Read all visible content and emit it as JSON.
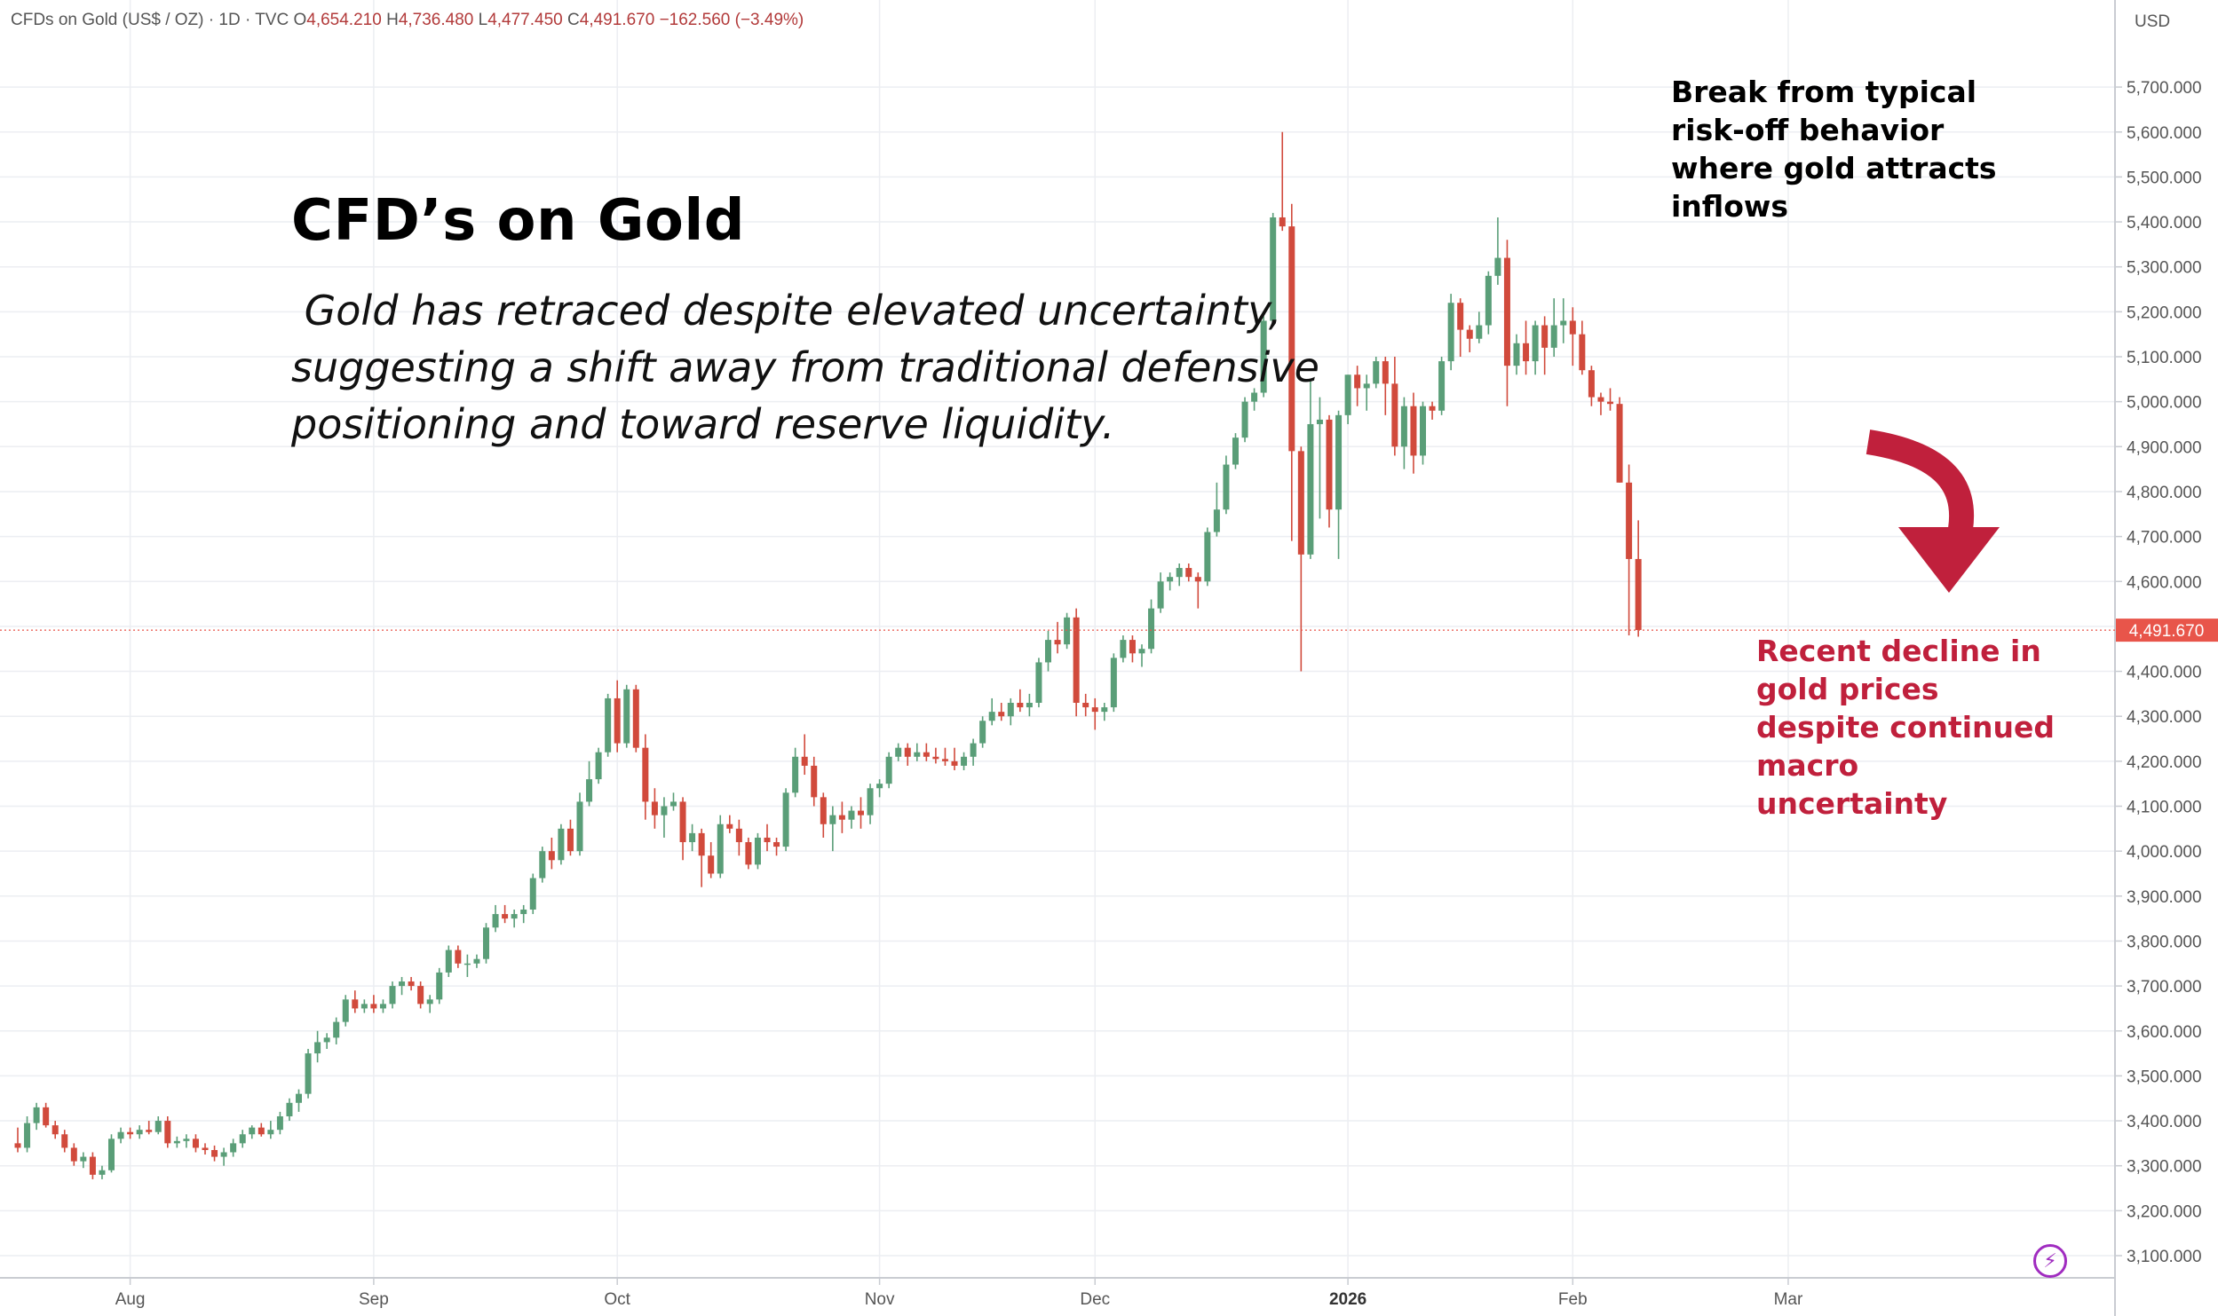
{
  "legend": {
    "symbol": "CFDs on Gold (US$ / OZ) · 1D · TVC",
    "open_label": "O",
    "open": "4,654.210",
    "high_label": "H",
    "high": "4,736.480",
    "low_label": "L",
    "low": "4,477.450",
    "close_label": "C",
    "close": "4,491.670",
    "change": "−162.560 (−3.49%)"
  },
  "headline": {
    "title": "CFD’s on Gold",
    "subtitle": " Gold has retraced despite elevated uncertainty,\nsuggesting a shift away from traditional defensive\npositioning and toward reserve liquidity."
  },
  "annotations": {
    "top": "Break from typical risk-off behavior where gold attracts inflows",
    "bottom": "Recent decline in gold prices despite continued macro uncertainty"
  },
  "colors": {
    "up": "#5a9e78",
    "down": "#d14a3c",
    "arrow": "#c0203c",
    "price_tag": "#e8554a",
    "grid": "#eceef2"
  },
  "icons": {
    "bolt": "lightning-icon"
  },
  "chart_data": {
    "type": "candlestick",
    "title": "CFDs on Gold (US$ / OZ) · 1D · TVC",
    "currency": "USD",
    "ylim": [
      3030,
      5780
    ],
    "yticks": [
      3100,
      3200,
      3300,
      3400,
      3500,
      3600,
      3700,
      3800,
      3900,
      4000,
      4100,
      4200,
      4300,
      4400,
      4500,
      4600,
      4700,
      4800,
      4900,
      5000,
      5100,
      5200,
      5300,
      5400,
      5500,
      5600,
      5700
    ],
    "ytick_labels": [
      "3,100.000",
      "3,200.000",
      "3,300.000",
      "3,400.000",
      "3,500.000",
      "3,600.000",
      "3,700.000",
      "3,800.000",
      "3,900.000",
      "4,000.000",
      "4,100.000",
      "4,200.000",
      "4,300.000",
      "4,400.000",
      "4,500.000",
      "4,600.000",
      "4,700.000",
      "4,800.000",
      "4,900.000",
      "5,000.000",
      "5,100.000",
      "5,200.000",
      "5,300.000",
      "5,400.000",
      "5,500.000",
      "5,600.000",
      "5,700.000"
    ],
    "x_labels": [
      {
        "label": "Aug",
        "index": 12,
        "bold": false
      },
      {
        "label": "Sep",
        "index": 38,
        "bold": false
      },
      {
        "label": "Oct",
        "index": 64,
        "bold": false
      },
      {
        "label": "Nov",
        "index": 92,
        "bold": false
      },
      {
        "label": "Dec",
        "index": 115,
        "bold": false
      },
      {
        "label": "2026",
        "index": 142,
        "bold": true
      },
      {
        "label": "Feb",
        "index": 166,
        "bold": false
      },
      {
        "label": "Mar",
        "index": 189,
        "bold": false
      }
    ],
    "last_price": 4491.67,
    "last_price_label": "4,491.670",
    "candles": [
      [
        3350,
        3385,
        3330,
        3340
      ],
      [
        3340,
        3410,
        3330,
        3395
      ],
      [
        3395,
        3440,
        3380,
        3430
      ],
      [
        3430,
        3440,
        3385,
        3390
      ],
      [
        3390,
        3400,
        3360,
        3370
      ],
      [
        3370,
        3380,
        3330,
        3340
      ],
      [
        3340,
        3350,
        3300,
        3310
      ],
      [
        3310,
        3330,
        3295,
        3320
      ],
      [
        3320,
        3330,
        3270,
        3280
      ],
      [
        3280,
        3300,
        3270,
        3290
      ],
      [
        3290,
        3370,
        3285,
        3360
      ],
      [
        3360,
        3385,
        3350,
        3375
      ],
      [
        3375,
        3385,
        3360,
        3370
      ],
      [
        3370,
        3390,
        3360,
        3380
      ],
      [
        3380,
        3400,
        3370,
        3375
      ],
      [
        3375,
        3410,
        3370,
        3400
      ],
      [
        3400,
        3410,
        3340,
        3350
      ],
      [
        3350,
        3365,
        3340,
        3355
      ],
      [
        3355,
        3370,
        3340,
        3360
      ],
      [
        3360,
        3370,
        3330,
        3340
      ],
      [
        3340,
        3350,
        3325,
        3335
      ],
      [
        3335,
        3345,
        3310,
        3320
      ],
      [
        3320,
        3340,
        3300,
        3330
      ],
      [
        3330,
        3360,
        3320,
        3350
      ],
      [
        3350,
        3380,
        3340,
        3370
      ],
      [
        3370,
        3390,
        3360,
        3385
      ],
      [
        3385,
        3395,
        3365,
        3370
      ],
      [
        3370,
        3400,
        3360,
        3380
      ],
      [
        3380,
        3420,
        3370,
        3410
      ],
      [
        3410,
        3450,
        3400,
        3440
      ],
      [
        3440,
        3470,
        3420,
        3460
      ],
      [
        3460,
        3560,
        3450,
        3550
      ],
      [
        3550,
        3600,
        3530,
        3575
      ],
      [
        3575,
        3595,
        3560,
        3585
      ],
      [
        3585,
        3630,
        3570,
        3620
      ],
      [
        3620,
        3680,
        3610,
        3670
      ],
      [
        3670,
        3690,
        3640,
        3650
      ],
      [
        3650,
        3670,
        3640,
        3660
      ],
      [
        3660,
        3680,
        3640,
        3650
      ],
      [
        3650,
        3670,
        3640,
        3660
      ],
      [
        3660,
        3710,
        3650,
        3700
      ],
      [
        3700,
        3720,
        3680,
        3710
      ],
      [
        3710,
        3720,
        3690,
        3700
      ],
      [
        3700,
        3710,
        3650,
        3660
      ],
      [
        3660,
        3680,
        3640,
        3670
      ],
      [
        3670,
        3740,
        3660,
        3730
      ],
      [
        3730,
        3790,
        3720,
        3780
      ],
      [
        3780,
        3790,
        3740,
        3750
      ],
      [
        3750,
        3770,
        3720,
        3750
      ],
      [
        3750,
        3770,
        3740,
        3760
      ],
      [
        3760,
        3840,
        3750,
        3830
      ],
      [
        3830,
        3880,
        3820,
        3860
      ],
      [
        3860,
        3880,
        3840,
        3850
      ],
      [
        3850,
        3870,
        3830,
        3860
      ],
      [
        3860,
        3880,
        3840,
        3870
      ],
      [
        3870,
        3950,
        3860,
        3940
      ],
      [
        3940,
        4010,
        3930,
        4000
      ],
      [
        4000,
        4030,
        3960,
        3980
      ],
      [
        3980,
        4060,
        3970,
        4050
      ],
      [
        4050,
        4070,
        3990,
        4000
      ],
      [
        4000,
        4130,
        3990,
        4110
      ],
      [
        4110,
        4200,
        4100,
        4160
      ],
      [
        4160,
        4230,
        4150,
        4220
      ],
      [
        4220,
        4350,
        4210,
        4340
      ],
      [
        4340,
        4380,
        4220,
        4240
      ],
      [
        4240,
        4370,
        4230,
        4360
      ],
      [
        4360,
        4370,
        4220,
        4230
      ],
      [
        4230,
        4260,
        4070,
        4110
      ],
      [
        4110,
        4140,
        4050,
        4080
      ],
      [
        4080,
        4120,
        4030,
        4100
      ],
      [
        4100,
        4130,
        4090,
        4110
      ],
      [
        4110,
        4120,
        3980,
        4020
      ],
      [
        4020,
        4060,
        4000,
        4040
      ],
      [
        4040,
        4050,
        3920,
        3990
      ],
      [
        3990,
        4020,
        3940,
        3950
      ],
      [
        3950,
        4080,
        3940,
        4060
      ],
      [
        4060,
        4080,
        4040,
        4050
      ],
      [
        4050,
        4070,
        3990,
        4020
      ],
      [
        4020,
        4030,
        3960,
        3970
      ],
      [
        3970,
        4040,
        3960,
        4030
      ],
      [
        4030,
        4060,
        4000,
        4020
      ],
      [
        4020,
        4030,
        3990,
        4010
      ],
      [
        4010,
        4140,
        4000,
        4130
      ],
      [
        4130,
        4230,
        4120,
        4210
      ],
      [
        4210,
        4260,
        4170,
        4190
      ],
      [
        4190,
        4210,
        4100,
        4120
      ],
      [
        4120,
        4130,
        4030,
        4060
      ],
      [
        4060,
        4100,
        4000,
        4080
      ],
      [
        4080,
        4110,
        4040,
        4070
      ],
      [
        4070,
        4100,
        4050,
        4090
      ],
      [
        4090,
        4120,
        4050,
        4080
      ],
      [
        4080,
        4150,
        4060,
        4140
      ],
      [
        4140,
        4160,
        4120,
        4150
      ],
      [
        4150,
        4220,
        4140,
        4210
      ],
      [
        4210,
        4240,
        4200,
        4230
      ],
      [
        4230,
        4240,
        4190,
        4210
      ],
      [
        4210,
        4240,
        4200,
        4220
      ],
      [
        4220,
        4240,
        4200,
        4210
      ],
      [
        4210,
        4230,
        4195,
        4205
      ],
      [
        4205,
        4230,
        4190,
        4200
      ],
      [
        4200,
        4230,
        4180,
        4190
      ],
      [
        4190,
        4220,
        4180,
        4210
      ],
      [
        4210,
        4250,
        4190,
        4240
      ],
      [
        4240,
        4300,
        4230,
        4290
      ],
      [
        4290,
        4340,
        4280,
        4310
      ],
      [
        4310,
        4330,
        4290,
        4300
      ],
      [
        4300,
        4340,
        4280,
        4330
      ],
      [
        4330,
        4360,
        4310,
        4320
      ],
      [
        4320,
        4350,
        4300,
        4330
      ],
      [
        4330,
        4430,
        4320,
        4420
      ],
      [
        4420,
        4490,
        4400,
        4470
      ],
      [
        4470,
        4510,
        4440,
        4460
      ],
      [
        4460,
        4530,
        4450,
        4520
      ],
      [
        4520,
        4540,
        4300,
        4330
      ],
      [
        4330,
        4350,
        4300,
        4320
      ],
      [
        4320,
        4340,
        4270,
        4310
      ],
      [
        4310,
        4330,
        4290,
        4320
      ],
      [
        4320,
        4440,
        4310,
        4430
      ],
      [
        4430,
        4480,
        4420,
        4470
      ],
      [
        4470,
        4480,
        4420,
        4440
      ],
      [
        4440,
        4460,
        4410,
        4450
      ],
      [
        4450,
        4560,
        4440,
        4540
      ],
      [
        4540,
        4620,
        4530,
        4600
      ],
      [
        4600,
        4620,
        4580,
        4610
      ],
      [
        4610,
        4640,
        4590,
        4630
      ],
      [
        4630,
        4640,
        4600,
        4610
      ],
      [
        4610,
        4620,
        4540,
        4600
      ],
      [
        4600,
        4720,
        4590,
        4710
      ],
      [
        4710,
        4820,
        4700,
        4760
      ],
      [
        4760,
        4880,
        4750,
        4860
      ],
      [
        4860,
        4930,
        4850,
        4920
      ],
      [
        4920,
        5010,
        4910,
        5000
      ],
      [
        5000,
        5030,
        4980,
        5020
      ],
      [
        5020,
        5190,
        5010,
        5180
      ],
      [
        5180,
        5420,
        5170,
        5410
      ],
      [
        5410,
        5600,
        5380,
        5390
      ],
      [
        5390,
        5440,
        4690,
        4890
      ],
      [
        4890,
        4900,
        4400,
        4660
      ],
      [
        4660,
        5050,
        4650,
        4950
      ],
      [
        4950,
        5010,
        4740,
        4960
      ],
      [
        4960,
        4970,
        4720,
        4760
      ],
      [
        4760,
        4980,
        4650,
        4970
      ],
      [
        4970,
        5060,
        4950,
        5060
      ],
      [
        5060,
        5080,
        4990,
        5030
      ],
      [
        5030,
        5060,
        4980,
        5040
      ],
      [
        5040,
        5100,
        5030,
        5090
      ],
      [
        5090,
        5100,
        4970,
        5040
      ],
      [
        5040,
        5100,
        4880,
        4900
      ],
      [
        4900,
        5010,
        4850,
        4990
      ],
      [
        4990,
        5020,
        4840,
        4880
      ],
      [
        4880,
        5000,
        4860,
        4990
      ],
      [
        4990,
        5000,
        4960,
        4980
      ],
      [
        4980,
        5100,
        4970,
        5090
      ],
      [
        5090,
        5240,
        5070,
        5220
      ],
      [
        5220,
        5230,
        5100,
        5160
      ],
      [
        5160,
        5170,
        5110,
        5140
      ],
      [
        5140,
        5200,
        5130,
        5170
      ],
      [
        5170,
        5290,
        5150,
        5280
      ],
      [
        5280,
        5410,
        5260,
        5320
      ],
      [
        5320,
        5360,
        4990,
        5080
      ],
      [
        5080,
        5150,
        5060,
        5130
      ],
      [
        5130,
        5180,
        5060,
        5090
      ],
      [
        5090,
        5180,
        5060,
        5170
      ],
      [
        5170,
        5190,
        5060,
        5120
      ],
      [
        5120,
        5230,
        5100,
        5170
      ],
      [
        5170,
        5230,
        5130,
        5180
      ],
      [
        5180,
        5210,
        5080,
        5150
      ],
      [
        5150,
        5180,
        5060,
        5070
      ],
      [
        5070,
        5080,
        4990,
        5010
      ],
      [
        5010,
        5020,
        4970,
        5000
      ],
      [
        5000,
        5030,
        4980,
        4995
      ],
      [
        4995,
        5010,
        4820,
        4820
      ],
      [
        4820,
        4860,
        4480,
        4650
      ],
      [
        4650,
        4736,
        4477,
        4492
      ]
    ]
  }
}
